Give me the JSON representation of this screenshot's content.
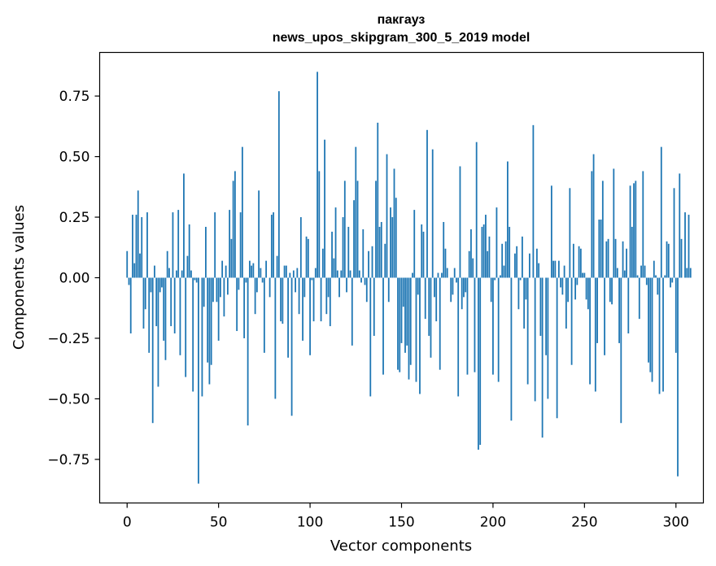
{
  "chart_data": {
    "type": "bar",
    "title": "пакгауз",
    "subtitle": "news_upos_skipgram_300_5_2019 model",
    "xlabel": "Vector components",
    "ylabel": "Components values",
    "xlim": [
      -15,
      315
    ],
    "ylim": [
      -0.93,
      0.93
    ],
    "xticks": [
      0,
      50,
      100,
      150,
      200,
      250,
      300
    ],
    "xtick_labels": [
      "0",
      "50",
      "100",
      "150",
      "200",
      "250",
      "300"
    ],
    "yticks": [
      -0.75,
      -0.5,
      -0.25,
      0.0,
      0.25,
      0.5,
      0.75
    ],
    "ytick_labels": [
      "−0.75",
      "−0.50",
      "−0.25",
      "0.00",
      "0.25",
      "0.50",
      "0.75"
    ],
    "grid": false,
    "bar_color": "#1f77b4",
    "values": [
      0.11,
      -0.03,
      -0.23,
      0.26,
      0.06,
      0.26,
      0.36,
      0.1,
      0.25,
      -0.21,
      -0.13,
      0.27,
      -0.31,
      -0.06,
      -0.6,
      0.05,
      -0.2,
      -0.45,
      -0.06,
      -0.04,
      -0.26,
      -0.34,
      0.11,
      0.04,
      -0.2,
      0.27,
      -0.23,
      0.03,
      0.28,
      -0.32,
      0.03,
      0.43,
      -0.41,
      0.09,
      0.22,
      0.03,
      -0.47,
      -0.01,
      -0.02,
      -0.85,
      0.0,
      -0.49,
      -0.12,
      0.21,
      -0.35,
      -0.44,
      -0.36,
      -0.1,
      0.27,
      -0.1,
      -0.26,
      -0.08,
      0.07,
      -0.16,
      0.05,
      -0.07,
      0.28,
      0.16,
      0.4,
      0.44,
      -0.22,
      -0.05,
      0.27,
      0.54,
      -0.25,
      -0.02,
      -0.61,
      0.07,
      0.05,
      0.06,
      -0.15,
      -0.06,
      0.36,
      0.04,
      -0.02,
      -0.31,
      0.07,
      0.0,
      -0.08,
      0.26,
      0.27,
      -0.5,
      0.09,
      0.77,
      -0.18,
      -0.19,
      0.05,
      0.05,
      -0.33,
      0.02,
      -0.57,
      0.03,
      -0.06,
      0.04,
      -0.15,
      0.25,
      -0.26,
      -0.08,
      0.17,
      0.16,
      -0.32,
      -0.01,
      -0.18,
      0.04,
      0.85,
      0.44,
      -0.18,
      0.12,
      0.57,
      -0.15,
      -0.08,
      -0.2,
      0.19,
      0.08,
      0.29,
      0.03,
      -0.08,
      0.03,
      0.25,
      0.4,
      -0.06,
      0.21,
      0.03,
      -0.28,
      0.32,
      0.54,
      0.4,
      0.03,
      -0.02,
      0.2,
      -0.03,
      -0.1,
      0.11,
      -0.49,
      0.13,
      -0.24,
      0.4,
      0.64,
      0.21,
      0.23,
      -0.4,
      0.14,
      0.51,
      -0.1,
      0.29,
      0.25,
      0.45,
      0.33,
      -0.38,
      -0.39,
      -0.27,
      -0.12,
      -0.31,
      -0.28,
      -0.42,
      -0.36,
      0.02,
      0.28,
      -0.43,
      -0.07,
      -0.48,
      0.22,
      0.19,
      -0.17,
      0.61,
      -0.24,
      -0.33,
      0.53,
      -0.08,
      -0.18,
      0.02,
      -0.38,
      0.02,
      0.23,
      0.12,
      0.04,
      0.0,
      -0.1,
      -0.07,
      0.04,
      -0.02,
      -0.49,
      0.46,
      -0.13,
      -0.08,
      -0.06,
      -0.4,
      0.11,
      0.2,
      0.08,
      -0.39,
      0.56,
      -0.71,
      -0.69,
      0.21,
      0.22,
      0.26,
      0.11,
      0.17,
      -0.1,
      -0.4,
      -0.01,
      0.29,
      -0.43,
      0.01,
      0.14,
      0.05,
      0.15,
      0.48,
      0.21,
      -0.59,
      0.0,
      0.1,
      0.13,
      -0.13,
      -0.01,
      0.17,
      -0.21,
      -0.09,
      -0.44,
      0.1,
      0.0,
      0.63,
      -0.51,
      0.12,
      0.06,
      -0.24,
      -0.66,
      0.0,
      -0.32,
      -0.5,
      0.0,
      0.38,
      0.07,
      0.07,
      -0.58,
      0.07,
      -0.04,
      -0.07,
      0.05,
      -0.21,
      -0.1,
      0.37,
      -0.36,
      0.14,
      -0.09,
      -0.03,
      0.13,
      0.12,
      0.02,
      0.02,
      -0.09,
      -0.13,
      -0.44,
      0.44,
      0.51,
      -0.47,
      -0.27,
      0.24,
      0.24,
      0.4,
      -0.32,
      0.15,
      0.16,
      -0.1,
      -0.11,
      0.45,
      0.16,
      0.04,
      -0.27,
      -0.6,
      0.15,
      0.03,
      0.12,
      -0.23,
      0.38,
      0.21,
      0.39,
      0.4,
      0.01,
      -0.17,
      0.05,
      0.44,
      0.05,
      -0.03,
      -0.35,
      -0.39,
      -0.43,
      0.07,
      0.01,
      -0.07,
      -0.48,
      0.54,
      -0.47,
      0.01,
      0.15,
      0.14,
      -0.04,
      -0.02,
      0.37,
      -0.31,
      -0.82,
      0.43,
      0.16,
      0.0,
      0.27,
      0.04,
      0.26,
      0.04
    ]
  }
}
